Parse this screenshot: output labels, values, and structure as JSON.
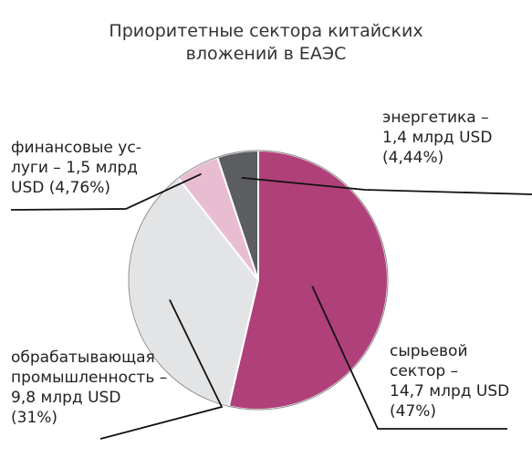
{
  "title": [
    "Приоритетные сектора китайских",
    "вложений в ЕАЭС"
  ],
  "chart_data": {
    "type": "pie",
    "title": "Приоритетные сектора китайских вложений в ЕАЭС",
    "unit": "млрд USD",
    "slices": [
      {
        "key": "raw",
        "value": 14.7,
        "percent": 47,
        "color": "#b0407a",
        "label_lines": [
          "сырьевой",
          "сектор –",
          "14,7 млрд USD",
          "(47%)"
        ]
      },
      {
        "key": "proc",
        "value": 9.8,
        "percent": 31,
        "color": "#e3e4e6",
        "label_lines": [
          "обрабатывающая",
          "промышленность –",
          "9,8 млрд USD",
          "(31%)"
        ]
      },
      {
        "key": "fin",
        "value": 1.5,
        "percent": 4.76,
        "color": "#e8bdd2",
        "label_lines": [
          "финансовые ус-",
          "луги – 1,5 млрд",
          "USD (4,76%)"
        ]
      },
      {
        "key": "energy",
        "value": 1.4,
        "percent": 4.44,
        "color": "#5c5d60",
        "label_lines": [
          "энергетика –",
          "1,4 млрд USD",
          "(4,44%)"
        ]
      }
    ]
  }
}
